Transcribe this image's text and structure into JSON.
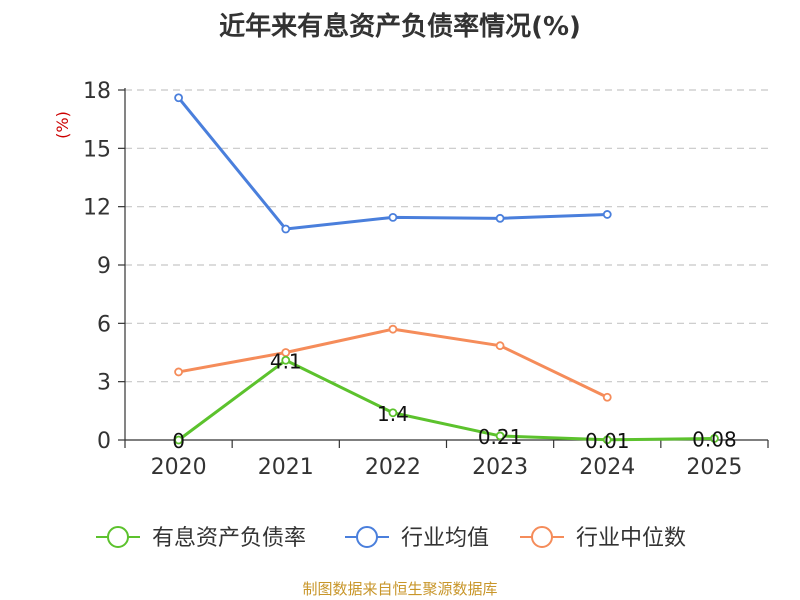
{
  "chart_data": {
    "type": "line",
    "title": "近年来有息资产负债率情况(%)",
    "ylabel": "(%)",
    "categories": [
      "2020",
      "2021",
      "2022",
      "2023",
      "2024",
      "2025"
    ],
    "yticks": [
      0,
      3,
      6,
      9,
      12,
      15,
      18
    ],
    "ylim": [
      0,
      18
    ],
    "grid": true,
    "legend_position": "bottom",
    "series": [
      {
        "name": "有息资产负债率",
        "color": "#5cc22d",
        "values": [
          0,
          4.1,
          1.4,
          0.21,
          0.01,
          0.08
        ],
        "labels": [
          "0",
          "4.1",
          "1.4",
          "0.21",
          "0.01",
          "0.08"
        ]
      },
      {
        "name": "行业均值",
        "color": "#4a7fdc",
        "values": [
          17.6,
          10.85,
          11.45,
          11.4,
          11.6,
          null
        ]
      },
      {
        "name": "行业中位数",
        "color": "#f58c5a",
        "values": [
          3.5,
          4.5,
          5.7,
          4.85,
          2.2,
          null
        ]
      }
    ]
  },
  "source": "制图数据来自恒生聚源数据库"
}
